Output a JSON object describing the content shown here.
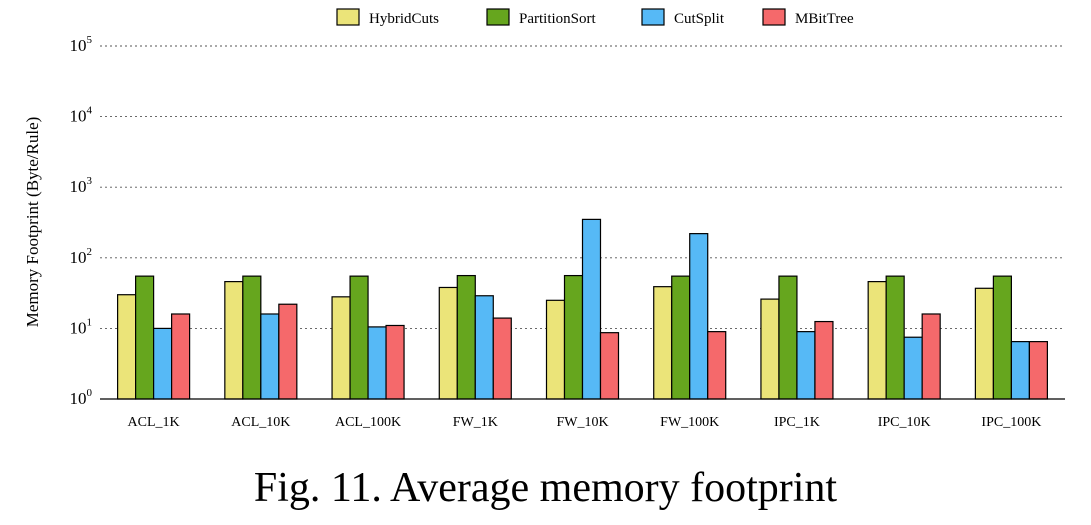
{
  "caption": "Fig. 11. Average memory footprint",
  "chart_data": {
    "type": "bar",
    "ylabel": "Memory Footprint (Byte/Rule)",
    "y_scale": "log",
    "ylim": [
      1,
      100000
    ],
    "y_ticks": [
      1,
      10,
      100,
      1000,
      10000,
      100000
    ],
    "y_tick_labels": [
      {
        "base": "10",
        "exp": "0"
      },
      {
        "base": "10",
        "exp": "1"
      },
      {
        "base": "10",
        "exp": "2"
      },
      {
        "base": "10",
        "exp": "3"
      },
      {
        "base": "10",
        "exp": "4"
      },
      {
        "base": "10",
        "exp": "5"
      }
    ],
    "grid": "horizontal dashed",
    "legend": "top",
    "categories": [
      "ACL_1K",
      "ACL_10K",
      "ACL_100K",
      "FW_1K",
      "FW_10K",
      "FW_100K",
      "IPC_1K",
      "IPC_10K",
      "IPC_100K"
    ],
    "series": [
      {
        "name": "HybridCuts",
        "color": "#ebe479",
        "values": [
          30,
          46,
          28,
          38,
          25,
          39,
          26,
          46,
          37
        ]
      },
      {
        "name": "PartitionSort",
        "color": "#66a61e",
        "values": [
          55,
          55,
          55,
          56,
          56,
          55,
          55,
          55,
          55
        ]
      },
      {
        "name": "CutSplit",
        "color": "#56b9f6",
        "values": [
          10,
          16,
          10.5,
          29,
          350,
          220,
          9,
          7.5,
          6.5
        ]
      },
      {
        "name": "MBitTree",
        "color": "#f5696b",
        "values": [
          16,
          22,
          11,
          14,
          8.7,
          9,
          12.5,
          16,
          6.5
        ]
      }
    ]
  }
}
